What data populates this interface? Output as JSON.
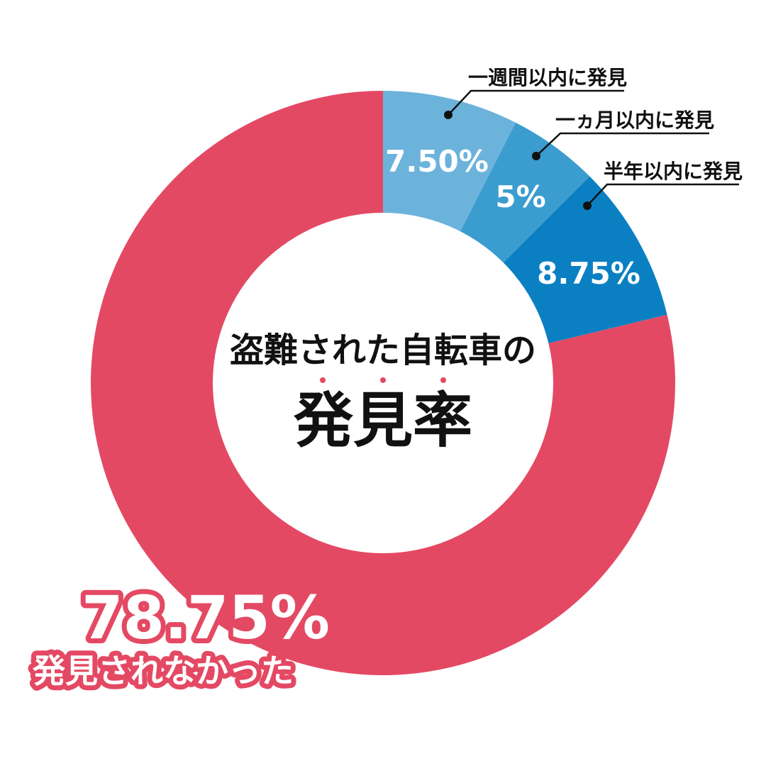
{
  "chart_data": {
    "type": "pie",
    "variant": "donut",
    "title_line1": "盗難された自転車の",
    "title_line2": "発見率",
    "start_angle_deg": 0,
    "direction": "clockwise",
    "slices": [
      {
        "label": "一週間以内に発見",
        "value": 7.5,
        "value_label": "7.50%",
        "color": "#6cb3dc"
      },
      {
        "label": "一ヵ月以内に発見",
        "value": 5,
        "value_label": "5%",
        "color": "#3b9ccf"
      },
      {
        "label": "半年以内に発見",
        "value": 8.75,
        "value_label": "8.75%",
        "color": "#0a80c3"
      },
      {
        "label": "発見されなかった",
        "value": 78.75,
        "value_label": "78.75%",
        "color": "#e44963"
      }
    ]
  }
}
